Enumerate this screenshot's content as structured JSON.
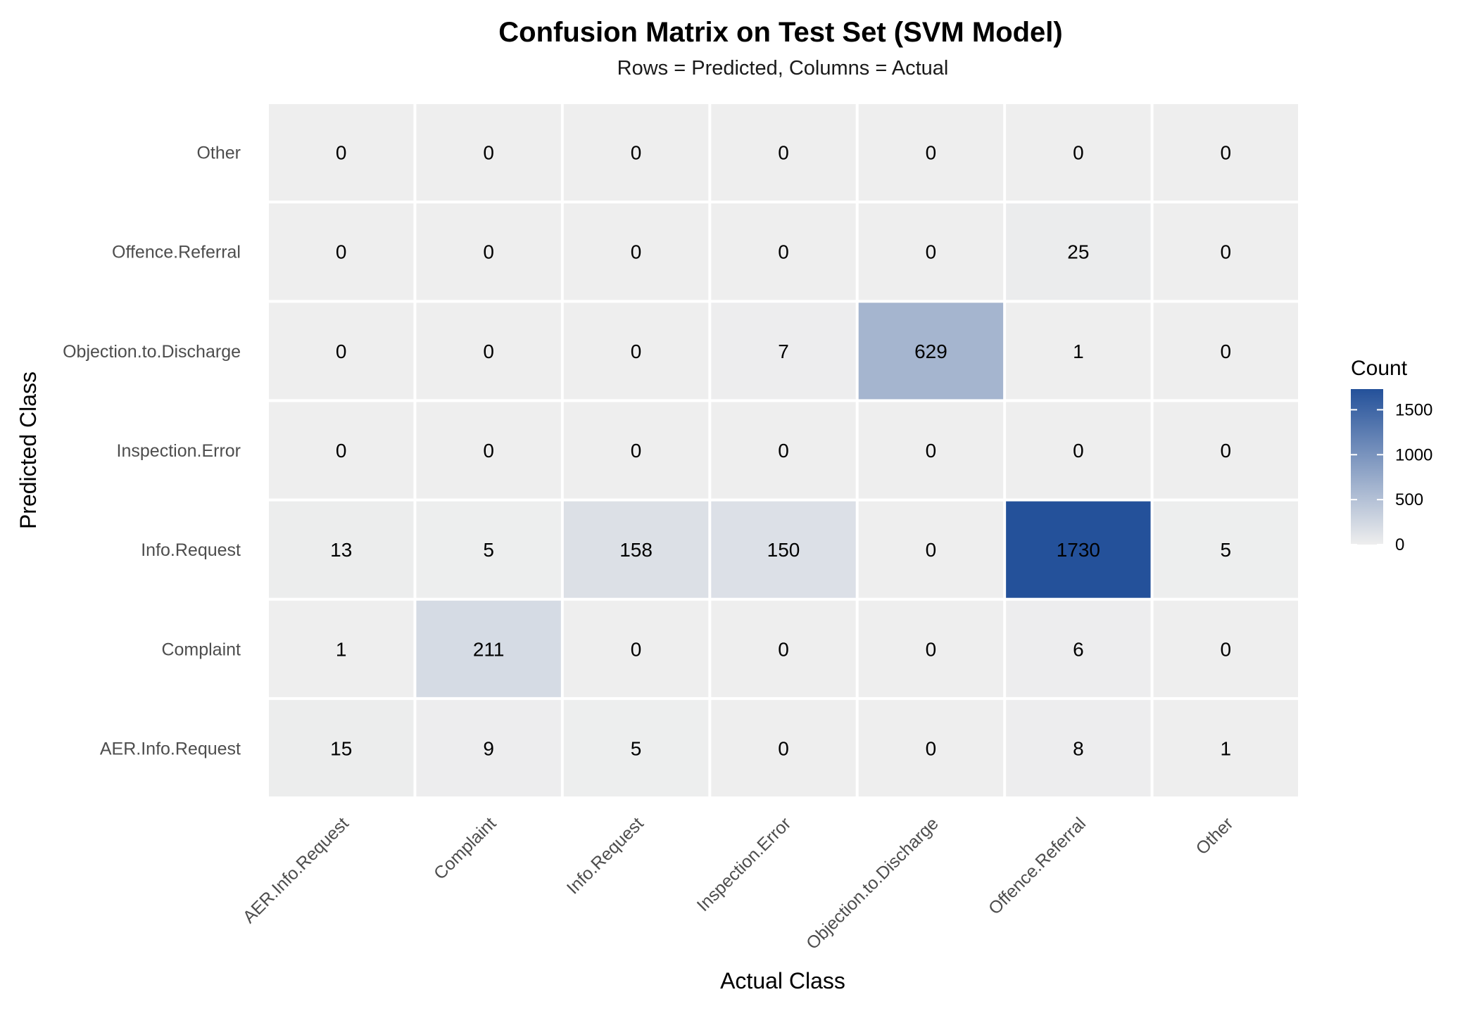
{
  "chart_data": {
    "type": "heatmap",
    "title": "Confusion Matrix on Test Set (SVM Model)",
    "subtitle": "Rows = Predicted, Columns = Actual",
    "xlabel": "Actual Class",
    "ylabel": "Predicted Class",
    "x_categories": [
      "AER.Info.Request",
      "Complaint",
      "Info.Request",
      "Inspection.Error",
      "Objection.to.Discharge",
      "Offence.Referral",
      "Other"
    ],
    "y_categories_top_to_bottom": [
      "Other",
      "Offence.Referral",
      "Objection.to.Discharge",
      "Inspection.Error",
      "Info.Request",
      "Complaint",
      "AER.Info.Request"
    ],
    "matrix": [
      [
        0,
        0,
        0,
        0,
        0,
        0,
        0
      ],
      [
        0,
        0,
        0,
        0,
        0,
        25,
        0
      ],
      [
        0,
        0,
        0,
        7,
        629,
        1,
        0
      ],
      [
        0,
        0,
        0,
        0,
        0,
        0,
        0
      ],
      [
        13,
        5,
        158,
        150,
        0,
        1730,
        5
      ],
      [
        1,
        211,
        0,
        0,
        0,
        6,
        0
      ],
      [
        15,
        9,
        5,
        0,
        0,
        8,
        1
      ]
    ],
    "legend": {
      "title": "Count",
      "position": "right",
      "ticks": [
        0,
        500,
        1000,
        1500
      ],
      "max": 1730,
      "color_low": "#eeeeee",
      "color_high": "#24519a"
    },
    "grid": false
  }
}
